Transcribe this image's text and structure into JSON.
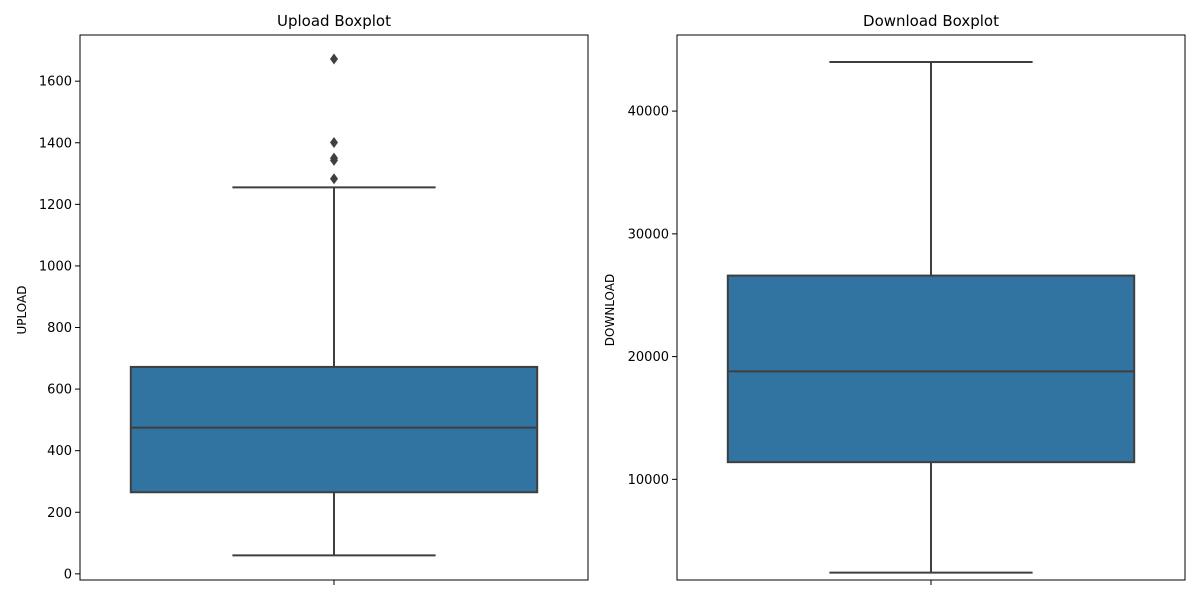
{
  "chart_data": [
    {
      "type": "box",
      "title": "Upload Boxplot",
      "xlabel": "",
      "ylabel": "UPLOAD",
      "ylim": [
        -20,
        1750
      ],
      "yticks": [
        0,
        200,
        400,
        600,
        800,
        1000,
        1200,
        1400,
        1600
      ],
      "box": {
        "min": 60,
        "q1": 265,
        "median": 475,
        "q3": 672,
        "max": 1255
      },
      "outliers": [
        1283,
        1343,
        1350,
        1401,
        1672
      ],
      "color": "#3274a1"
    },
    {
      "type": "box",
      "title": "Download Boxplot",
      "xlabel": "",
      "ylabel": "DOWNLOAD",
      "ylim": [
        1800,
        46200
      ],
      "yticks": [
        10000,
        20000,
        30000,
        40000
      ],
      "box": {
        "min": 2400,
        "q1": 11400,
        "median": 18800,
        "q3": 26600,
        "max": 44000
      },
      "outliers": [],
      "color": "#3274a1"
    }
  ]
}
